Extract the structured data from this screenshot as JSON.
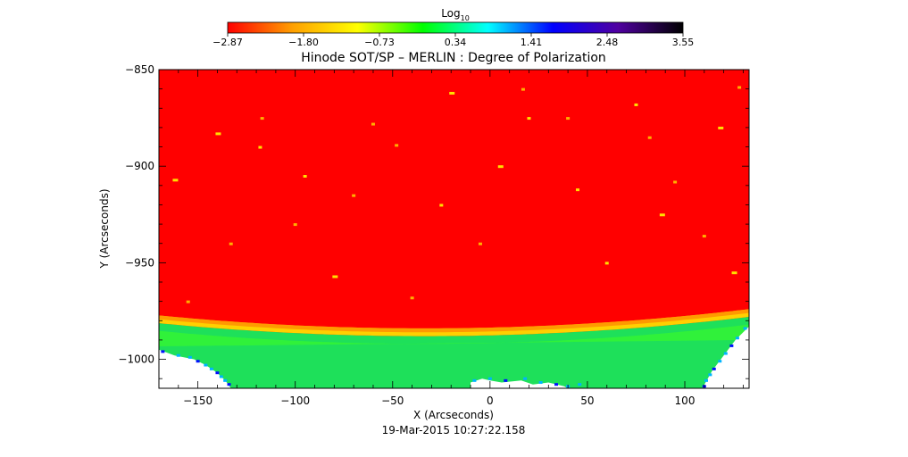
{
  "chart_data": {
    "type": "heatmap",
    "title": "Hinode SOT/SP – MERLIN : Degree of Polarization",
    "xlabel": "X (Arcseconds)",
    "ylabel": "Y (Arcseconds)",
    "timestamp": "19-Mar-2015 10:27:22.158",
    "xlim": [
      -170,
      133
    ],
    "ylim": [
      -1015,
      -850
    ],
    "x_ticks": [
      -150,
      -100,
      -50,
      0,
      50,
      100
    ],
    "y_ticks": [
      -850,
      -900,
      -950,
      -1000
    ],
    "x_tick_labels": [
      "−150",
      "−100",
      "−50",
      "0",
      "50",
      "100"
    ],
    "y_tick_labels": [
      "−850",
      "−900",
      "−950",
      "−1000"
    ],
    "colorbar": {
      "label_base": "Log",
      "label_sub": "10",
      "range": [
        -2.87,
        3.55
      ],
      "ticks": [
        -2.87,
        -1.8,
        -0.73,
        0.34,
        1.41,
        2.48,
        3.55
      ],
      "tick_labels": [
        "−2.87",
        "−1.80",
        "−0.73",
        "0.34",
        "1.41",
        "2.48",
        "3.55"
      ],
      "colormap": [
        "#ff0000",
        "#ffa000",
        "#ffff00",
        "#00ff00",
        "#00ffff",
        "#0000ff",
        "#5000a0",
        "#000000"
      ]
    },
    "background_value": -2.87,
    "limb_band_value": -1.5,
    "limb_edge_y_center": -988,
    "limb_edge_y_sides": -978,
    "off_limb_value": 0.1,
    "grid": false
  }
}
